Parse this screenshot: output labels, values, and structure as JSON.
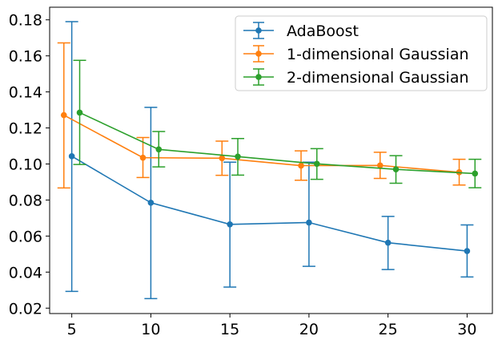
{
  "chart_data": {
    "type": "line",
    "title": "",
    "xlabel": "",
    "ylabel": "",
    "xlim": [
      3.6,
      31.6
    ],
    "ylim": [
      0.017,
      0.187
    ],
    "x_ticks": [
      5,
      10,
      15,
      20,
      25,
      30
    ],
    "x_tick_labels": [
      "5",
      "10",
      "15",
      "20",
      "25",
      "30"
    ],
    "y_ticks": [
      0.02,
      0.04,
      0.06,
      0.08,
      0.1,
      0.12,
      0.14,
      0.16,
      0.18
    ],
    "y_tick_labels": [
      "0.02",
      "0.04",
      "0.06",
      "0.08",
      "0.10",
      "0.12",
      "0.14",
      "0.16",
      "0.18"
    ],
    "grid": false,
    "legend_position": "upper-right",
    "error_bars": true,
    "series": [
      {
        "name": "AdaBoost",
        "color": "#1f77b4",
        "x": [
          5,
          10,
          15,
          20,
          25,
          30
        ],
        "values": [
          0.1043,
          0.0785,
          0.0665,
          0.0675,
          0.0563,
          0.0517
        ],
        "lower": [
          0.0293,
          0.0253,
          0.0317,
          0.0432,
          0.0414,
          0.0373
        ],
        "upper": [
          0.179,
          0.1314,
          0.101,
          0.101,
          0.0709,
          0.0662
        ]
      },
      {
        "name": "1-dimensional Gaussian",
        "color": "#ff7f0e",
        "x": [
          4.5,
          9.5,
          14.5,
          19.5,
          24.5,
          29.5
        ],
        "values": [
          0.1271,
          0.1035,
          0.1032,
          0.0991,
          0.0992,
          0.0954
        ],
        "lower": [
          0.0867,
          0.0925,
          0.0937,
          0.091,
          0.092,
          0.0883
        ],
        "upper": [
          0.1672,
          0.1147,
          0.1127,
          0.1073,
          0.1065,
          0.1026
        ]
      },
      {
        "name": "2-dimensional Gaussian",
        "color": "#2ca02c",
        "x": [
          5.5,
          10.5,
          15.5,
          20.5,
          25.5,
          30.5
        ],
        "values": [
          0.1285,
          0.1081,
          0.1041,
          0.1001,
          0.097,
          0.0947
        ],
        "lower": [
          0.0997,
          0.0984,
          0.0938,
          0.0915,
          0.0893,
          0.0868
        ],
        "upper": [
          0.1575,
          0.118,
          0.1141,
          0.1085,
          0.1046,
          0.1026
        ]
      }
    ]
  }
}
